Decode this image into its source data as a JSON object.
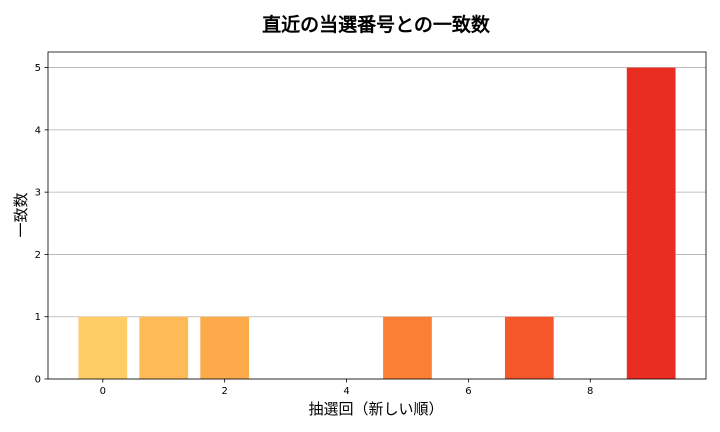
{
  "chart_data": {
    "type": "bar",
    "title": "直近の当選番号との一致数",
    "xlabel": "抽選回（新しい順）",
    "ylabel": "一致数",
    "x": [
      0,
      1,
      2,
      3,
      4,
      5,
      6,
      7,
      8,
      9
    ],
    "values": [
      1,
      1,
      1,
      0,
      0,
      1,
      0,
      1,
      0,
      5
    ],
    "xlim": [
      -0.9,
      9.9
    ],
    "ylim": [
      0,
      5.25
    ],
    "xticks": [
      0,
      2,
      4,
      6,
      8
    ],
    "yticks": [
      0,
      1,
      2,
      3,
      4,
      5
    ],
    "grid": "horizontal",
    "colors": [
      "#fecd66",
      "#feba57",
      "#fdaa4b",
      "#fd9a45",
      "#fc8a3e",
      "#fb8036",
      "#f86d2f",
      "#f5562a",
      "#ef4024",
      "#e92d22"
    ]
  }
}
